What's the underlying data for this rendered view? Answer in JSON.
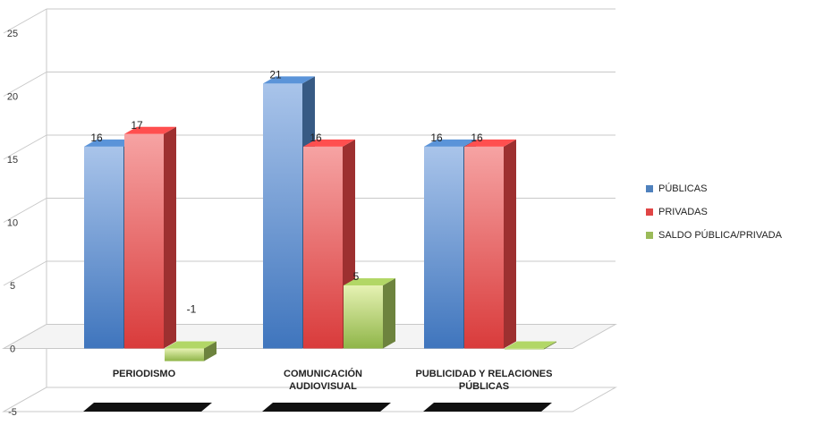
{
  "chart_data": {
    "type": "bar",
    "categories": [
      "PERIODISMO",
      "COMUNICACIÓN\nAUDIOVISUAL",
      "PUBLICIDAD Y RELACIONES\nPÚBLICAS"
    ],
    "series": [
      {
        "name": "PÚBLICAS",
        "values": [
          16,
          21,
          16
        ],
        "labels": [
          "16",
          "21",
          "16"
        ],
        "color": "#4f81bd"
      },
      {
        "name": "PRIVADAS",
        "values": [
          17,
          16,
          16
        ],
        "labels": [
          "17",
          "16",
          "16"
        ],
        "color": "#e04545"
      },
      {
        "name": "SALDO PÚBLICA/PRIVADA",
        "values": [
          -1,
          5,
          0
        ],
        "labels": [
          "-1",
          "5",
          ""
        ],
        "color": "#9bbb59"
      }
    ],
    "ylim": [
      -5,
      25
    ],
    "yticks": [
      "-5",
      "0",
      "5",
      "10",
      "15",
      "20",
      "25"
    ],
    "grid": true,
    "legend_position": "right",
    "title": "",
    "xlabel": "",
    "ylabel": ""
  }
}
